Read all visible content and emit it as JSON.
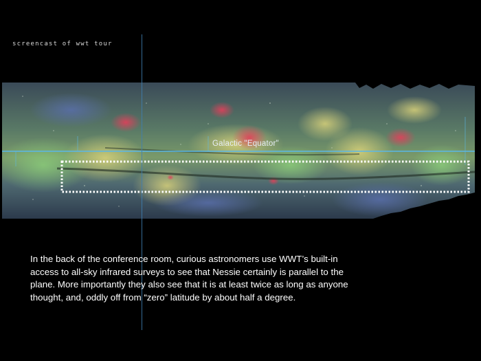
{
  "header": {
    "screencast_label": "screencast of wwt tour"
  },
  "sky_view": {
    "survey_type": "all-sky infrared",
    "equator_label": "Galactic \"Equator\"",
    "equator_line_color": "#5ab8e8",
    "highlight_box_color": "#ffffff"
  },
  "caption": {
    "text": "In the back of the conference room, curious astronomers use WWT’s built-in access to all-sky infrared surveys to see that Nessie certainly is parallel to the plane. More importantly they also see that it is at least twice as long as anyone thought, and, oddly off from “zero” latitude by about half a degree."
  }
}
